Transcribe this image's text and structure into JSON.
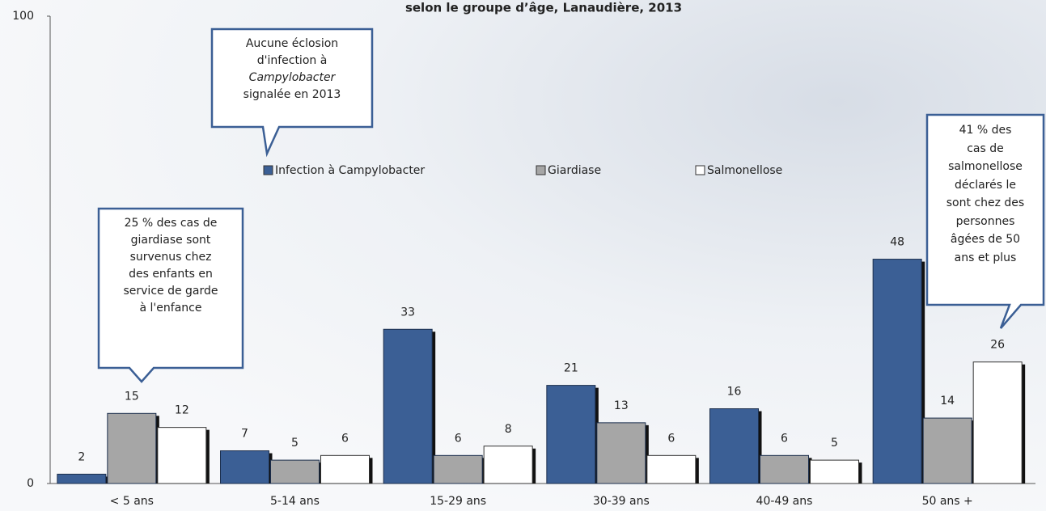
{
  "chart_data": {
    "type": "bar",
    "title": "selon le groupe d’âge, Lanaudière, 2013",
    "categories": [
      "< 5 ans",
      "5-14 ans",
      "15-29 ans",
      "30-39 ans",
      "40-49 ans",
      "50 ans +"
    ],
    "series": [
      {
        "name": "Infection à Campylobacter",
        "color": "#3b5f95",
        "values": [
          2,
          7,
          33,
          21,
          16,
          48
        ]
      },
      {
        "name": "Giardiase",
        "color": "#a6a6a6",
        "values": [
          15,
          5,
          6,
          13,
          6,
          14
        ]
      },
      {
        "name": "Salmonellose",
        "color": "#ffffff",
        "values": [
          12,
          6,
          8,
          6,
          5,
          26
        ]
      }
    ],
    "ylim": [
      0,
      100
    ],
    "yticks": [
      0,
      100
    ],
    "grid": false,
    "legend": "top",
    "annotations": [
      [
        "Aucune éclosion",
        "d'infection à",
        "Campylobacter",
        "signalée en 2013"
      ],
      [
        "25 % des cas de",
        "giardiase sont",
        "survenus chez",
        "des enfants en",
        "service de garde",
        "à l'enfance"
      ],
      [
        "41 % des",
        "cas de",
        "salmonellose",
        "déclarés le",
        "sont chez des",
        "personnes",
        "âgées de 50",
        "ans et plus"
      ]
    ]
  }
}
